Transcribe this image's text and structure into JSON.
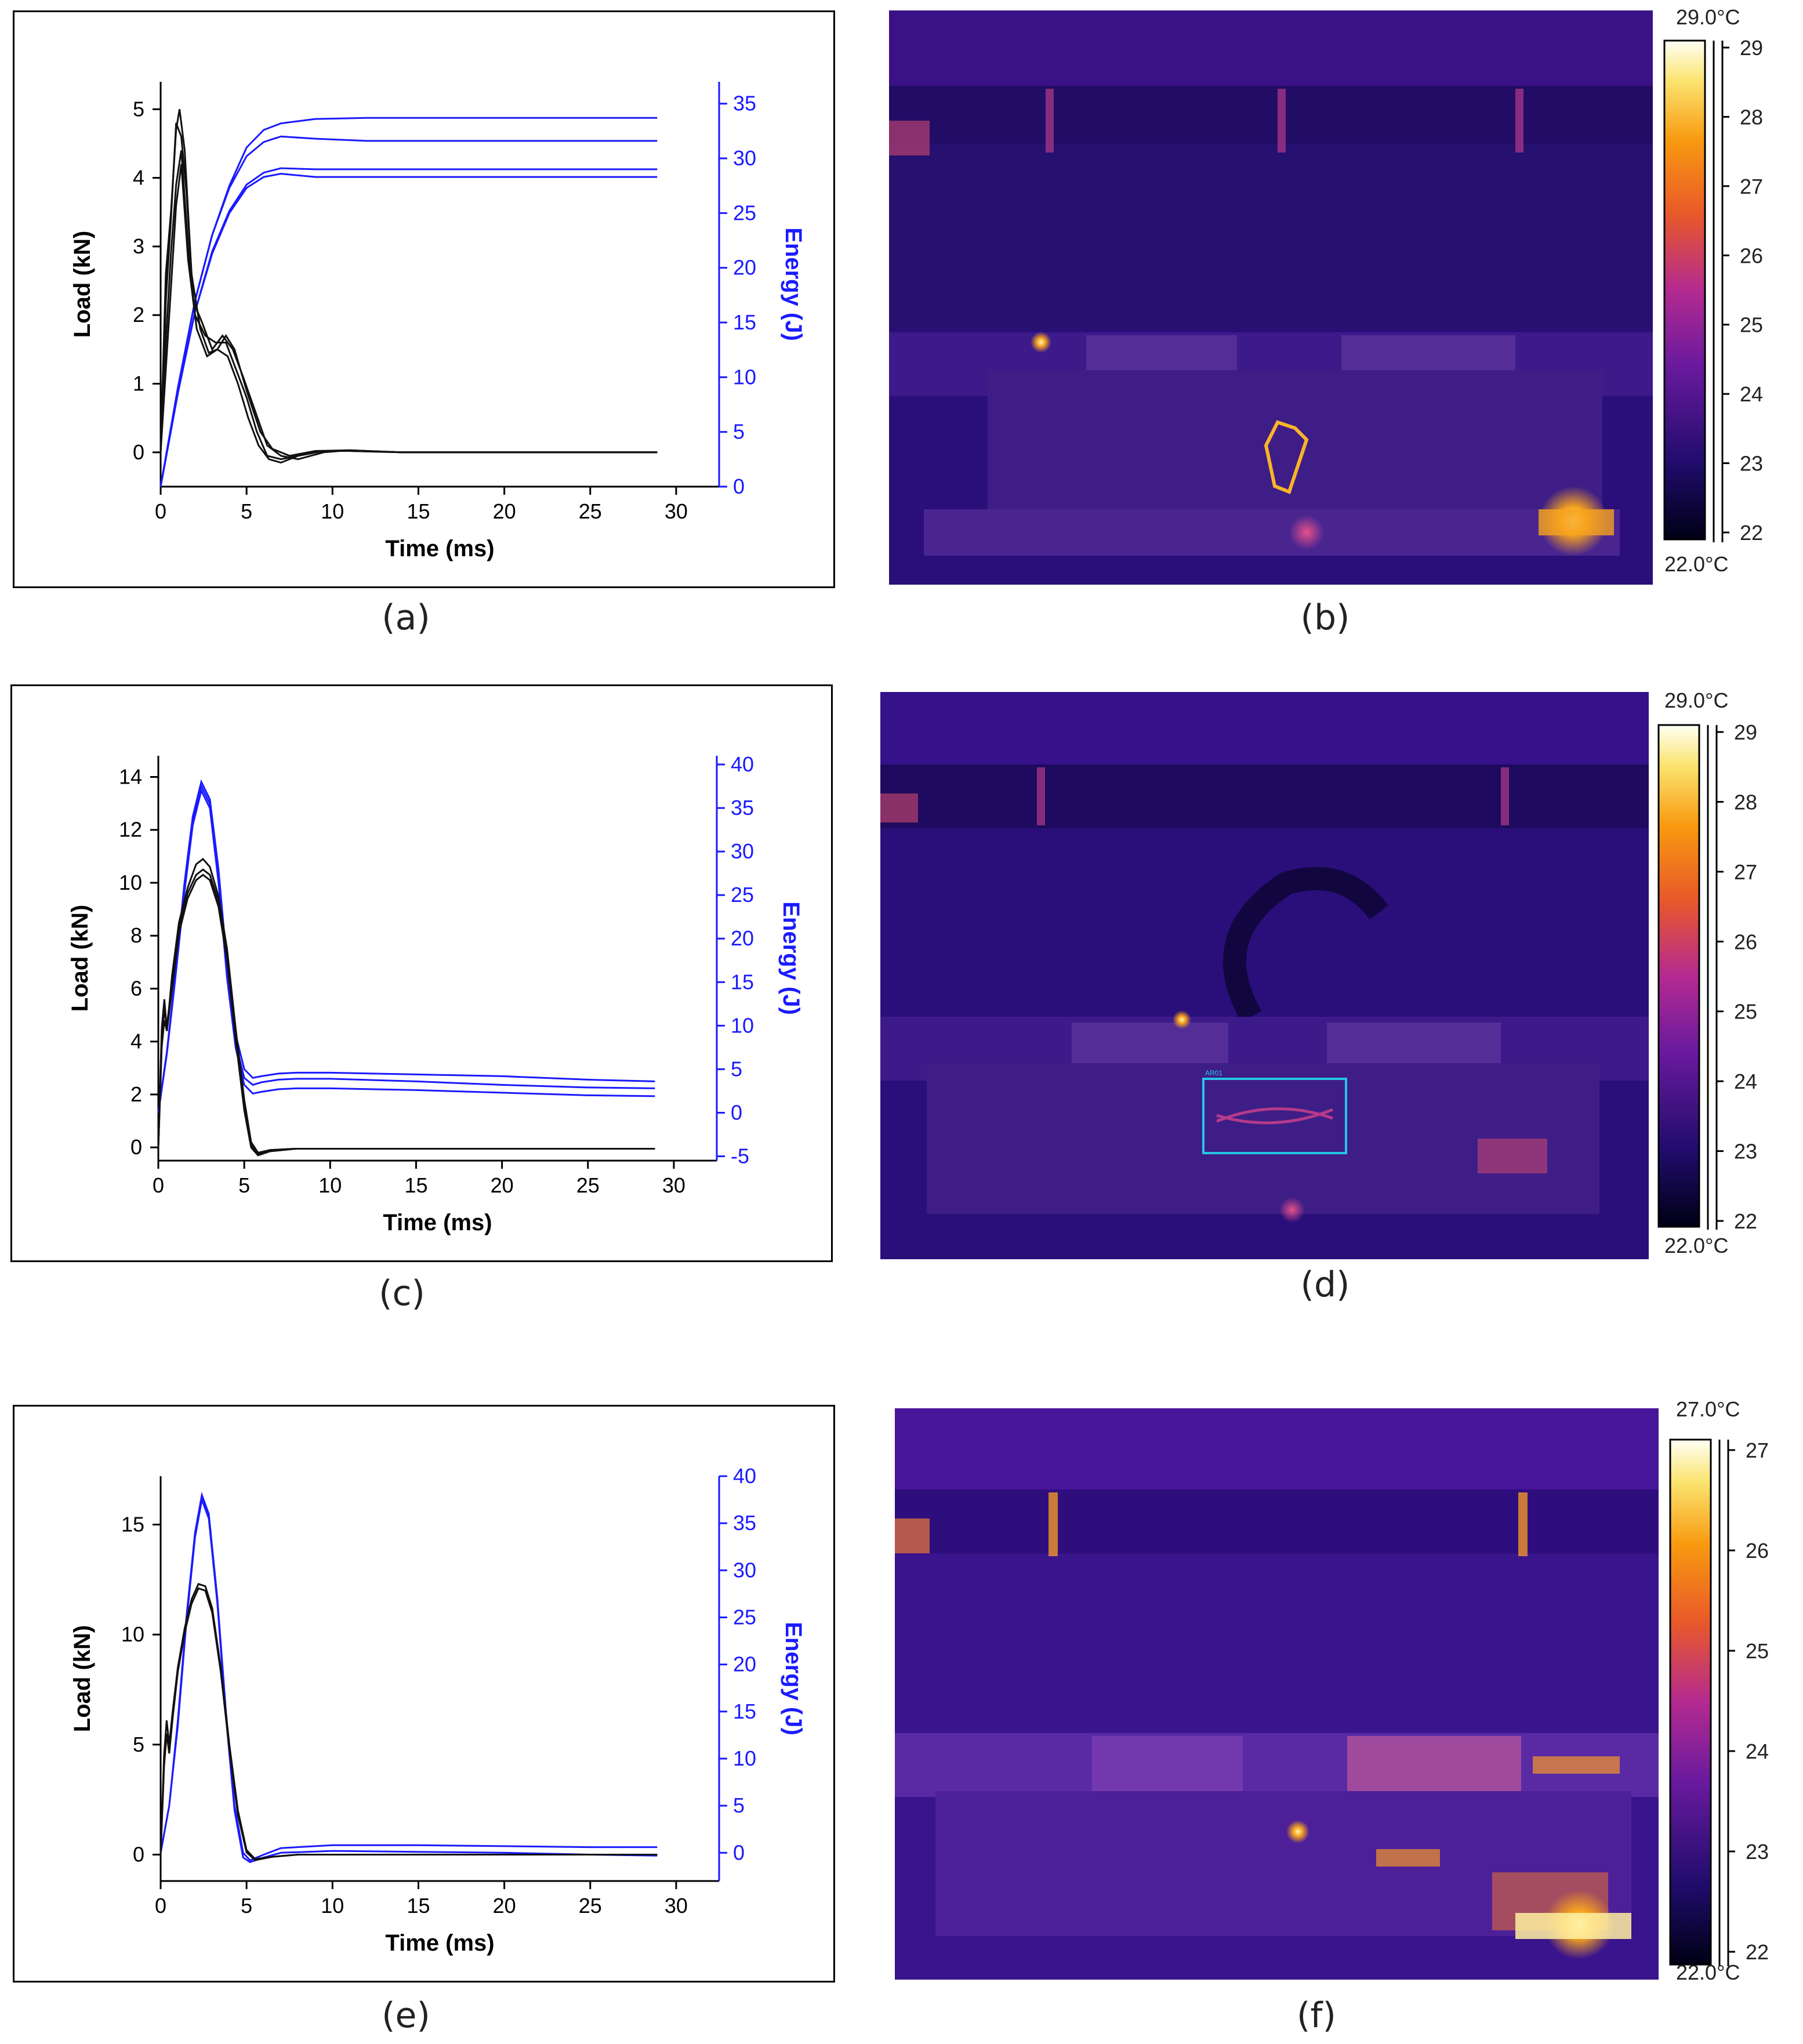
{
  "captions": [
    "(a)",
    "(b)",
    "(c)",
    "(d)",
    "(e)",
    "(f)"
  ],
  "colors": {
    "load": "#111111",
    "energy": "#1a1aff",
    "thermal_bg": "#2a0f7a",
    "roi_box": "#27c5e6"
  },
  "chart_data": [
    {
      "type": "line",
      "panel": "a",
      "xlabel": "Time (ms)",
      "ylabel": "Load (kN)",
      "y2label": "Energy (J)",
      "xlim": [
        0,
        32.5
      ],
      "ylim": [
        -0.5,
        5.4
      ],
      "y2lim": [
        0,
        37
      ],
      "xticks": [
        0,
        5,
        10,
        15,
        20,
        25,
        30
      ],
      "yticks": [
        0,
        1,
        2,
        3,
        4,
        5
      ],
      "y2ticks": [
        0,
        5,
        10,
        15,
        20,
        25,
        30,
        35
      ],
      "load_series": [
        {
          "x": [
            0,
            0.3,
            0.6,
            0.9,
            1.1,
            1.4,
            1.8,
            2.3,
            2.8,
            3.3,
            3.8,
            4.3,
            5.0,
            5.8,
            6.5,
            7.5,
            9,
            11,
            14,
            20,
            28.9
          ],
          "y": [
            0,
            2.6,
            3.5,
            4.7,
            5.0,
            4.4,
            2.6,
            1.8,
            1.45,
            1.5,
            1.7,
            1.5,
            0.9,
            0.3,
            0.05,
            -0.05,
            0.02,
            0.03,
            0,
            0,
            0
          ]
        },
        {
          "x": [
            0,
            0.3,
            0.6,
            0.9,
            1.2,
            1.5,
            1.9,
            2.4,
            3.0,
            3.6,
            4.2,
            4.8,
            5.5,
            6.2,
            7.0,
            8,
            9.5,
            11,
            14,
            20,
            28.9
          ],
          "y": [
            0,
            2.2,
            3.4,
            4.8,
            4.6,
            3.8,
            2.2,
            1.9,
            1.5,
            1.7,
            1.5,
            1.1,
            0.6,
            0.1,
            -0.05,
            -0.1,
            0.0,
            0.03,
            0,
            0,
            0
          ]
        },
        {
          "x": [
            0,
            0.3,
            0.6,
            0.9,
            1.2,
            1.6,
            2.0,
            2.6,
            3.2,
            3.8,
            4.4,
            5.0,
            5.6,
            6.2,
            7.0,
            8,
            9.5,
            11,
            14,
            20,
            28.9
          ],
          "y": [
            0,
            1.6,
            2.9,
            3.9,
            4.4,
            3.0,
            2.0,
            1.7,
            1.6,
            1.6,
            1.2,
            0.8,
            0.3,
            -0.05,
            -0.1,
            -0.05,
            0.02,
            0.02,
            0,
            0,
            0
          ]
        },
        {
          "x": [
            0,
            0.3,
            0.6,
            0.9,
            1.2,
            1.6,
            2.1,
            2.7,
            3.3,
            3.9,
            4.5,
            5.1,
            5.7,
            6.3,
            7.0,
            8,
            9.5,
            11,
            14,
            20,
            28.9
          ],
          "y": [
            0,
            1.2,
            2.4,
            3.6,
            4.2,
            2.8,
            1.8,
            1.4,
            1.5,
            1.4,
            1.0,
            0.5,
            0.1,
            -0.1,
            -0.15,
            -0.05,
            0.02,
            0.02,
            0,
            0,
            0
          ]
        }
      ],
      "energy_series": [
        {
          "x": [
            0,
            1,
            2,
            3,
            4,
            5,
            6,
            7,
            9,
            12,
            28.9
          ],
          "y": [
            0,
            9,
            17,
            23,
            27.5,
            31,
            32.6,
            33.2,
            33.6,
            33.7,
            33.7
          ]
        },
        {
          "x": [
            0,
            1,
            2,
            3,
            4,
            5,
            6,
            7,
            9,
            12,
            28.9
          ],
          "y": [
            0,
            9,
            17,
            23,
            27.3,
            30.2,
            31.5,
            32.0,
            31.8,
            31.6,
            31.6
          ]
        },
        {
          "x": [
            0,
            1,
            2,
            3,
            4,
            5,
            6,
            7,
            9,
            12,
            28.9
          ],
          "y": [
            0,
            8.5,
            16,
            21.5,
            25.2,
            27.6,
            28.7,
            29.1,
            29.0,
            29.0,
            29.0
          ]
        },
        {
          "x": [
            0,
            1,
            2,
            3,
            4,
            5,
            6,
            7,
            9,
            12,
            28.9
          ],
          "y": [
            0,
            8.5,
            16,
            21.3,
            25.0,
            27.3,
            28.3,
            28.6,
            28.3,
            28.3,
            28.3
          ]
        }
      ]
    },
    {
      "type": "line",
      "panel": "c",
      "xlabel": "Time (ms)",
      "ylabel": "Load (kN)",
      "y2label": "Energy (J)",
      "xlim": [
        0,
        32.5
      ],
      "ylim": [
        -0.5,
        14.8
      ],
      "y2lim": [
        -5.5,
        41
      ],
      "xticks": [
        0,
        5,
        10,
        15,
        20,
        25,
        30
      ],
      "yticks": [
        0,
        2,
        4,
        6,
        8,
        10,
        12,
        14
      ],
      "y2ticks": [
        -5,
        0,
        5,
        10,
        15,
        20,
        25,
        30,
        35,
        40
      ],
      "load_series": [
        {
          "x": [
            0,
            0.2,
            0.35,
            0.5,
            0.8,
            1.2,
            1.7,
            2.2,
            2.6,
            3.0,
            3.5,
            4.0,
            4.5,
            5.0,
            5.4,
            5.8,
            6.5,
            8,
            12,
            20,
            28.9
          ],
          "y": [
            0,
            4.5,
            5.6,
            4.4,
            6.5,
            8.5,
            9.8,
            10.7,
            10.9,
            10.6,
            9.5,
            7.5,
            4.5,
            1.8,
            0.2,
            -0.2,
            -0.1,
            -0.05,
            -0.05,
            -0.05,
            -0.05
          ]
        },
        {
          "x": [
            0,
            0.2,
            0.35,
            0.5,
            0.8,
            1.2,
            1.7,
            2.2,
            2.6,
            3.0,
            3.5,
            4.0,
            4.5,
            5.0,
            5.4,
            5.8,
            6.5,
            8,
            12,
            20,
            28.9
          ],
          "y": [
            0,
            4.0,
            5.2,
            4.6,
            6.2,
            8.3,
            9.6,
            10.3,
            10.5,
            10.3,
            9.3,
            7.3,
            4.3,
            1.6,
            0.1,
            -0.25,
            -0.1,
            -0.05,
            -0.05,
            -0.05,
            -0.05
          ]
        },
        {
          "x": [
            0,
            0.2,
            0.35,
            0.5,
            0.8,
            1.2,
            1.7,
            2.2,
            2.6,
            3.0,
            3.5,
            4.0,
            4.5,
            5.0,
            5.4,
            5.8,
            6.5,
            8,
            12,
            20,
            28.9
          ],
          "y": [
            0,
            3.8,
            4.8,
            4.4,
            6.0,
            8.1,
            9.4,
            10.1,
            10.3,
            10.1,
            9.1,
            7.1,
            4.1,
            1.4,
            0.0,
            -0.3,
            -0.15,
            -0.05,
            -0.05,
            -0.05,
            -0.05
          ]
        }
      ],
      "energy_series": [
        {
          "x": [
            0,
            0.5,
            1.0,
            1.5,
            2.0,
            2.5,
            3.0,
            3.5,
            4.0,
            4.5,
            5.0,
            5.5,
            6.0,
            7,
            8,
            10,
            15,
            20,
            25,
            28.9
          ],
          "y": [
            0,
            7,
            16,
            26,
            34,
            38,
            36,
            28,
            17,
            9,
            5,
            4,
            4.2,
            4.5,
            4.6,
            4.6,
            4.4,
            4.2,
            3.8,
            3.6
          ]
        },
        {
          "x": [
            0,
            0.5,
            1.0,
            1.5,
            2.0,
            2.5,
            3.0,
            3.5,
            4.0,
            4.5,
            5.0,
            5.5,
            6.0,
            7,
            8,
            10,
            15,
            20,
            25,
            28.9
          ],
          "y": [
            0,
            7,
            16,
            25.5,
            33.5,
            37.5,
            35.5,
            27,
            16,
            8,
            4,
            3.2,
            3.5,
            3.8,
            3.9,
            3.9,
            3.6,
            3.2,
            2.9,
            2.8
          ]
        },
        {
          "x": [
            0,
            0.5,
            1.0,
            1.5,
            2.0,
            2.5,
            3.0,
            3.5,
            4.0,
            4.5,
            5.0,
            5.5,
            6.0,
            7,
            8,
            10,
            15,
            20,
            25,
            28.9
          ],
          "y": [
            0,
            6.8,
            15.6,
            25,
            33,
            37,
            35,
            26.5,
            15.5,
            7.5,
            3.2,
            2.2,
            2.4,
            2.7,
            2.8,
            2.8,
            2.6,
            2.3,
            2.0,
            1.9
          ]
        }
      ]
    },
    {
      "type": "line",
      "panel": "e",
      "xlabel": "Time (ms)",
      "ylabel": "Load (kN)",
      "y2label": "Energy (J)",
      "xlim": [
        0,
        32.5
      ],
      "ylim": [
        -1.2,
        17.2
      ],
      "y2lim": [
        -3,
        40
      ],
      "xticks": [
        0,
        5,
        10,
        15,
        20,
        25,
        30
      ],
      "yticks": [
        0,
        5,
        10,
        15
      ],
      "y2ticks": [
        0,
        5,
        10,
        15,
        20,
        25,
        30,
        35,
        40
      ],
      "load_series": [
        {
          "x": [
            0,
            0.2,
            0.35,
            0.5,
            0.7,
            1.0,
            1.4,
            1.8,
            2.2,
            2.6,
            3.0,
            3.5,
            4.0,
            4.5,
            5.0,
            5.5,
            6.5,
            8,
            12,
            20,
            28.9
          ],
          "y": [
            0,
            4.5,
            6.1,
            5.0,
            6.5,
            8.5,
            10.3,
            11.6,
            12.3,
            12.2,
            11.2,
            8.5,
            5.0,
            2.0,
            0.2,
            -0.2,
            -0.1,
            0.0,
            0.0,
            0.0,
            0.0
          ]
        },
        {
          "x": [
            0,
            0.2,
            0.35,
            0.5,
            0.7,
            1.0,
            1.4,
            1.8,
            2.2,
            2.6,
            3.0,
            3.5,
            4.0,
            4.5,
            5.0,
            5.5,
            6.5,
            8,
            12,
            20,
            28.9
          ],
          "y": [
            0,
            4.0,
            5.5,
            4.6,
            6.2,
            8.3,
            10.1,
            11.4,
            12.1,
            12.0,
            11.0,
            8.3,
            4.8,
            1.8,
            0.1,
            -0.25,
            -0.1,
            0.0,
            0.0,
            0.0,
            0.0
          ]
        }
      ],
      "energy_series": [
        {
          "x": [
            0,
            0.5,
            1.0,
            1.5,
            2.0,
            2.4,
            2.8,
            3.3,
            3.8,
            4.3,
            4.8,
            5.2,
            6.0,
            7,
            10,
            15,
            20,
            25,
            28.9
          ],
          "y": [
            0,
            5,
            14,
            25,
            34,
            38,
            36,
            27,
            15,
            5,
            0,
            -0.8,
            -0.2,
            0.5,
            0.8,
            0.8,
            0.7,
            0.6,
            0.6
          ]
        },
        {
          "x": [
            0,
            0.5,
            1.0,
            1.5,
            2.0,
            2.4,
            2.8,
            3.3,
            3.8,
            4.3,
            4.8,
            5.2,
            6.0,
            7,
            10,
            15,
            20,
            25,
            28.9
          ],
          "y": [
            0,
            5,
            13.5,
            24.5,
            33.5,
            37.5,
            35.5,
            26.5,
            14.5,
            4.5,
            -0.5,
            -1.0,
            -0.5,
            0.0,
            0.2,
            0.1,
            0.0,
            -0.2,
            -0.3
          ]
        }
      ]
    }
  ],
  "thermal_images": [
    {
      "panel": "b",
      "max_label": "29.0°C",
      "min_label": "22.0°C",
      "ticks": [
        "29",
        "28",
        "27",
        "26",
        "25",
        "24",
        "23",
        "22"
      ]
    },
    {
      "panel": "d",
      "max_label": "29.0°C",
      "min_label": "22.0°C",
      "ticks": [
        "29",
        "28",
        "27",
        "26",
        "25",
        "24",
        "23",
        "22"
      ],
      "roi_label": "AR01"
    },
    {
      "panel": "f",
      "max_label": "27.0°C",
      "min_label": "22.0°C",
      "ticks": [
        "27",
        "26",
        "25",
        "24",
        "23",
        "22"
      ]
    }
  ]
}
